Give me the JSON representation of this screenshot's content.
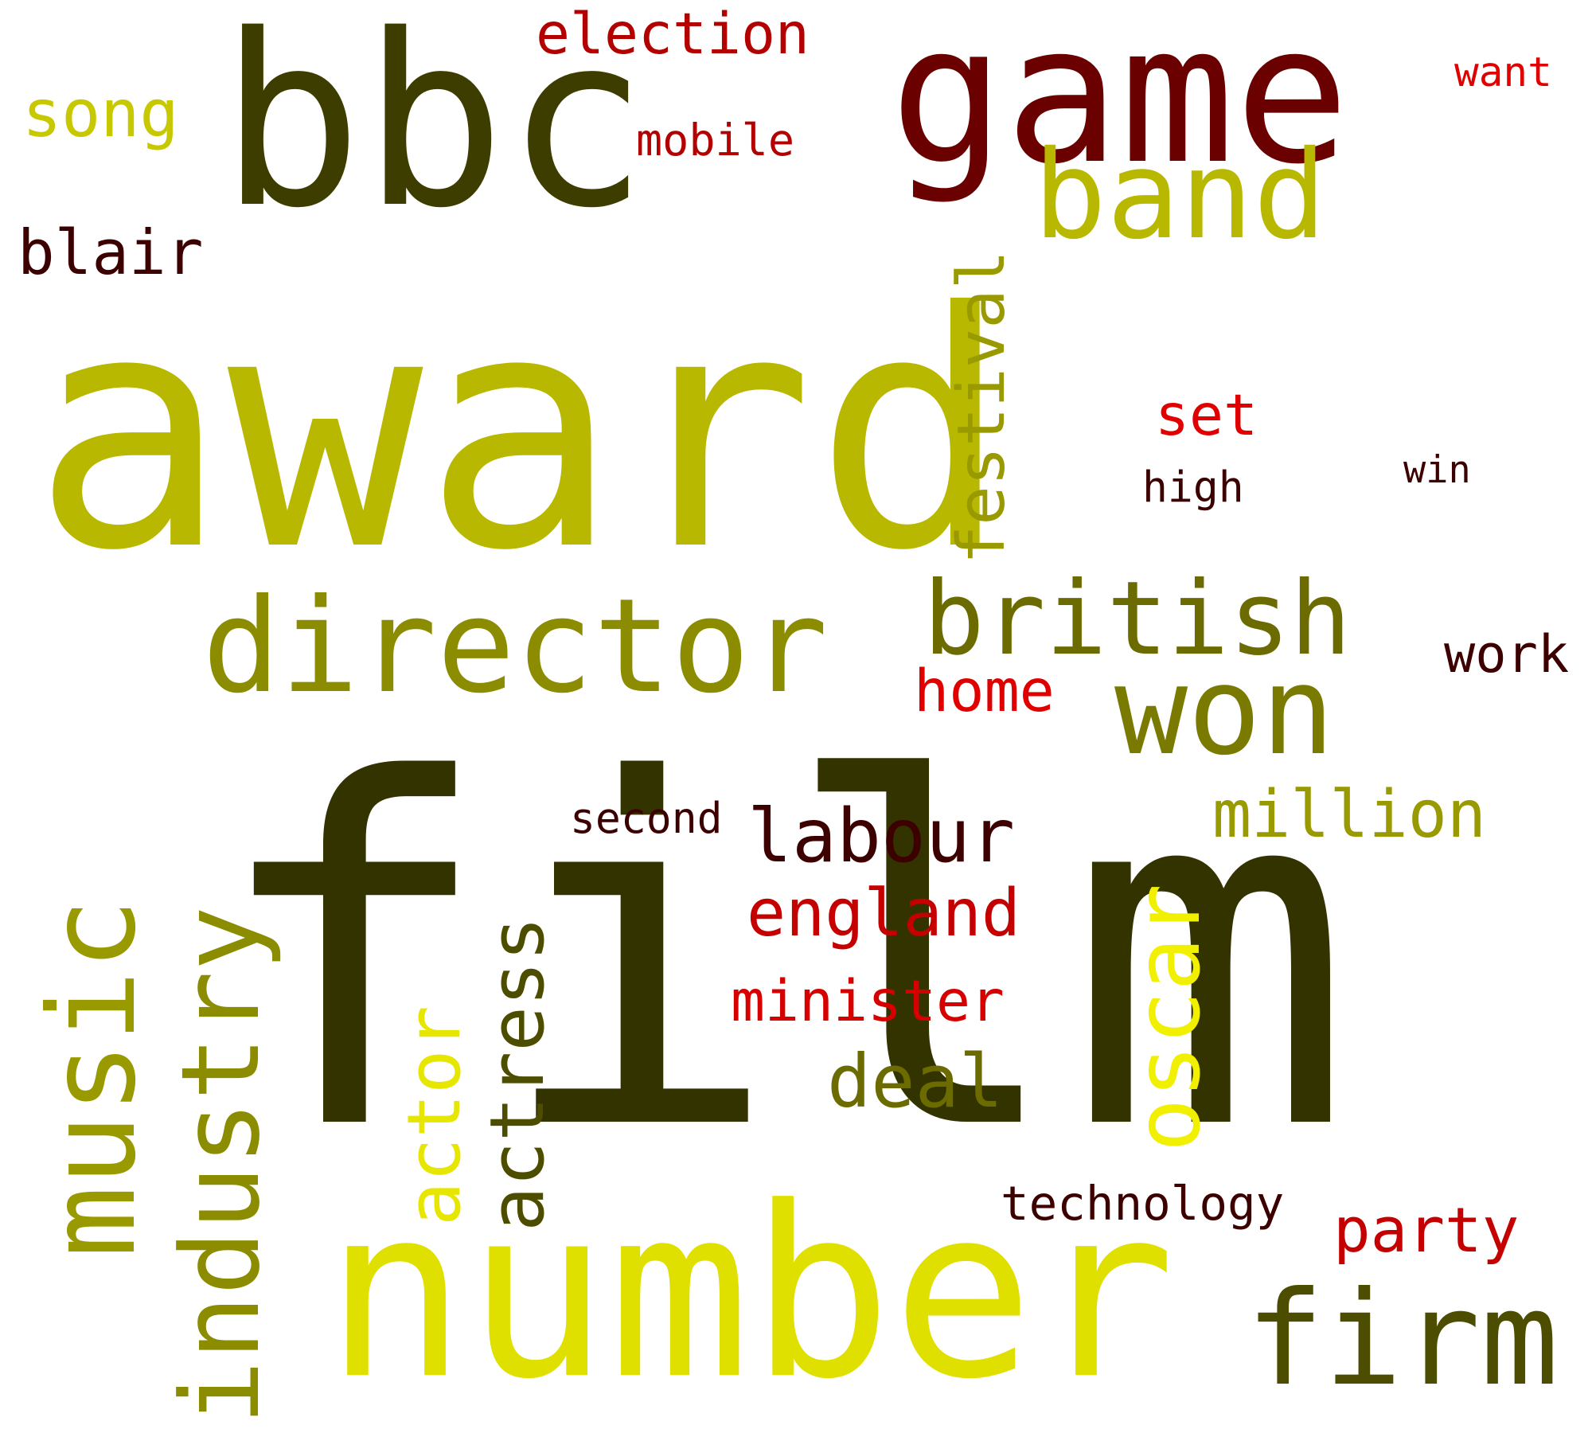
{
  "words": [
    {
      "id": "award",
      "text": "award",
      "color": "#b8b800",
      "orientation": "horizontal"
    },
    {
      "id": "film",
      "text": "film",
      "color": "#333300",
      "orientation": "horizontal"
    },
    {
      "id": "bbc",
      "text": "bbc",
      "color": "#3d3d00",
      "orientation": "horizontal"
    },
    {
      "id": "game",
      "text": "game",
      "color": "#6b0000",
      "orientation": "horizontal"
    },
    {
      "id": "number",
      "text": "number",
      "color": "#e0e000",
      "orientation": "horizontal"
    },
    {
      "id": "director",
      "text": "director",
      "color": "#8c8c00",
      "orientation": "horizontal"
    },
    {
      "id": "british",
      "text": "british",
      "color": "#6b6b00",
      "orientation": "horizontal"
    },
    {
      "id": "won",
      "text": "won",
      "color": "#7a7a00",
      "orientation": "horizontal"
    },
    {
      "id": "band",
      "text": "band",
      "color": "#b8b800",
      "orientation": "horizontal"
    },
    {
      "id": "music",
      "text": "music",
      "color": "#999900",
      "orientation": "vertical"
    },
    {
      "id": "industry",
      "text": "industry",
      "color": "#8c8c00",
      "orientation": "vertical"
    },
    {
      "id": "actor",
      "text": "actor",
      "color": "#e6e600",
      "orientation": "vertical"
    },
    {
      "id": "actress",
      "text": "actress",
      "color": "#4d4d00",
      "orientation": "vertical"
    },
    {
      "id": "oscar",
      "text": "oscar",
      "color": "#f0f000",
      "orientation": "vertical"
    },
    {
      "id": "festival",
      "text": "festival",
      "color": "#999900",
      "orientation": "vertical"
    },
    {
      "id": "firm",
      "text": "firm",
      "color": "#4d4d00",
      "orientation": "horizontal"
    },
    {
      "id": "million",
      "text": "million",
      "color": "#999900",
      "orientation": "horizontal"
    },
    {
      "id": "labour",
      "text": "labour",
      "color": "#3d0000",
      "orientation": "horizontal"
    },
    {
      "id": "england",
      "text": "england",
      "color": "#c40000",
      "orientation": "horizontal"
    },
    {
      "id": "minister",
      "text": "minister",
      "color": "#d60000",
      "orientation": "horizontal"
    },
    {
      "id": "deal",
      "text": "deal",
      "color": "#6b6b00",
      "orientation": "horizontal"
    },
    {
      "id": "song",
      "text": "song",
      "color": "#c8c800",
      "orientation": "horizontal"
    },
    {
      "id": "blair",
      "text": "blair",
      "color": "#3d0000",
      "orientation": "horizontal"
    },
    {
      "id": "election",
      "text": "election",
      "color": "#b30000",
      "orientation": "horizontal"
    },
    {
      "id": "mobile",
      "text": "mobile",
      "color": "#b30000",
      "orientation": "horizontal"
    },
    {
      "id": "want",
      "text": "want",
      "color": "#e00000",
      "orientation": "horizontal"
    },
    {
      "id": "set",
      "text": "set",
      "color": "#e00000",
      "orientation": "horizontal"
    },
    {
      "id": "high",
      "text": "high",
      "color": "#3d0000",
      "orientation": "horizontal"
    },
    {
      "id": "win",
      "text": "win",
      "color": "#3d0000",
      "orientation": "horizontal"
    },
    {
      "id": "work",
      "text": "work",
      "color": "#3d0000",
      "orientation": "horizontal"
    },
    {
      "id": "home",
      "text": "home",
      "color": "#e00000",
      "orientation": "horizontal"
    },
    {
      "id": "second",
      "text": "second",
      "color": "#3d0000",
      "orientation": "horizontal"
    },
    {
      "id": "party",
      "text": "party",
      "color": "#c40000",
      "orientation": "horizontal"
    },
    {
      "id": "technology",
      "text": "technology",
      "color": "#3d0000",
      "orientation": "horizontal"
    }
  ]
}
